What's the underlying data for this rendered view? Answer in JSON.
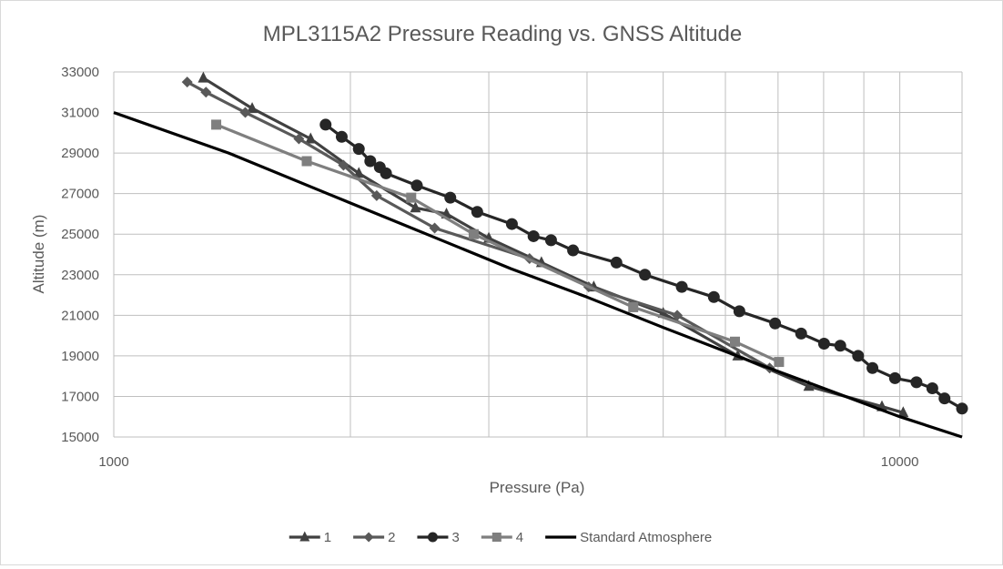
{
  "chart_data": {
    "type": "line",
    "title": "MPL3115A2 Pressure Reading vs. GNSS Altitude",
    "xlabel": "Pressure (Pa)",
    "ylabel": "Altitude (m)",
    "xscale": "log",
    "xlim": [
      1000,
      12000
    ],
    "ylim": [
      15000,
      33000
    ],
    "x_ticks": [
      1000,
      10000
    ],
    "x_tick_labels": [
      "1000",
      "10000"
    ],
    "y_ticks": [
      15000,
      17000,
      19000,
      21000,
      23000,
      25000,
      27000,
      29000,
      31000,
      33000
    ],
    "y_tick_labels": [
      "15000",
      "17000",
      "19000",
      "21000",
      "23000",
      "25000",
      "27000",
      "29000",
      "31000",
      "33000"
    ],
    "grid": true,
    "legend_position": "bottom",
    "series": [
      {
        "name": "1",
        "marker": "triangle",
        "color": "#404040",
        "x": [
          1300,
          1500,
          1780,
          2050,
          2420,
          2650,
          3000,
          3500,
          4080,
          5000,
          6220,
          7660,
          9490,
          10100
        ],
        "y": [
          32700,
          31200,
          29700,
          28000,
          26300,
          26000,
          24800,
          23600,
          22400,
          21100,
          19000,
          17500,
          16500,
          16200
        ]
      },
      {
        "name": "2",
        "marker": "diamond",
        "color": "#595959",
        "x": [
          1240,
          1310,
          1470,
          1720,
          1960,
          2160,
          2560,
          3380,
          4020,
          5210,
          6830
        ],
        "y": [
          32500,
          32000,
          31000,
          29700,
          28400,
          26900,
          25300,
          23800,
          22400,
          21000,
          18400
        ]
      },
      {
        "name": "3",
        "marker": "circle",
        "color": "#262626",
        "x": [
          1860,
          1950,
          2050,
          2120,
          2180,
          2220,
          2430,
          2680,
          2900,
          3210,
          3420,
          3600,
          3840,
          4360,
          4740,
          5280,
          5800,
          6250,
          6940,
          7490,
          8010,
          8400,
          8850,
          9230,
          9860,
          10500,
          11000,
          11400,
          12000
        ],
        "y": [
          30400,
          29800,
          29200,
          28600,
          28300,
          28000,
          27400,
          26800,
          26100,
          25500,
          24900,
          24700,
          24200,
          23600,
          23000,
          22400,
          21900,
          21200,
          20600,
          20100,
          19600,
          19500,
          19000,
          18400,
          17900,
          17700,
          17400,
          16900,
          16400
        ]
      },
      {
        "name": "4",
        "marker": "square",
        "color": "#7f7f7f",
        "x": [
          1350,
          1760,
          2390,
          2870,
          4580,
          6170,
          7020
        ],
        "y": [
          30400,
          28600,
          26800,
          25000,
          21400,
          19700,
          18700
        ]
      },
      {
        "name": "Standard Atmosphere",
        "marker": "none",
        "color": "#000000",
        "x": [
          1000,
          1400,
          1870,
          2500,
          3200,
          4000,
          5000,
          6500,
          8000,
          10000,
          12000
        ],
        "y": [
          31000,
          29000,
          27000,
          25000,
          23300,
          21900,
          20400,
          18700,
          17400,
          16000,
          15000
        ]
      }
    ]
  }
}
